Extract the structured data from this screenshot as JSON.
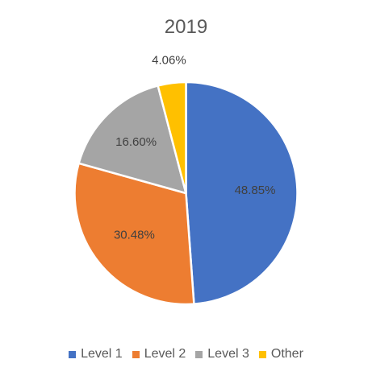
{
  "chart_data": {
    "type": "pie",
    "title": "2019",
    "categories": [
      "Level 1",
      "Level 2",
      "Level 3",
      "Other"
    ],
    "values": [
      48.85,
      30.48,
      16.6,
      4.06
    ],
    "labels": [
      "48.85%",
      "30.48%",
      "16.60%",
      "4.06%"
    ],
    "colors": [
      "#4472C4",
      "#ED7D31",
      "#A5A5A5",
      "#FFC000"
    ],
    "legend_position": "bottom"
  }
}
